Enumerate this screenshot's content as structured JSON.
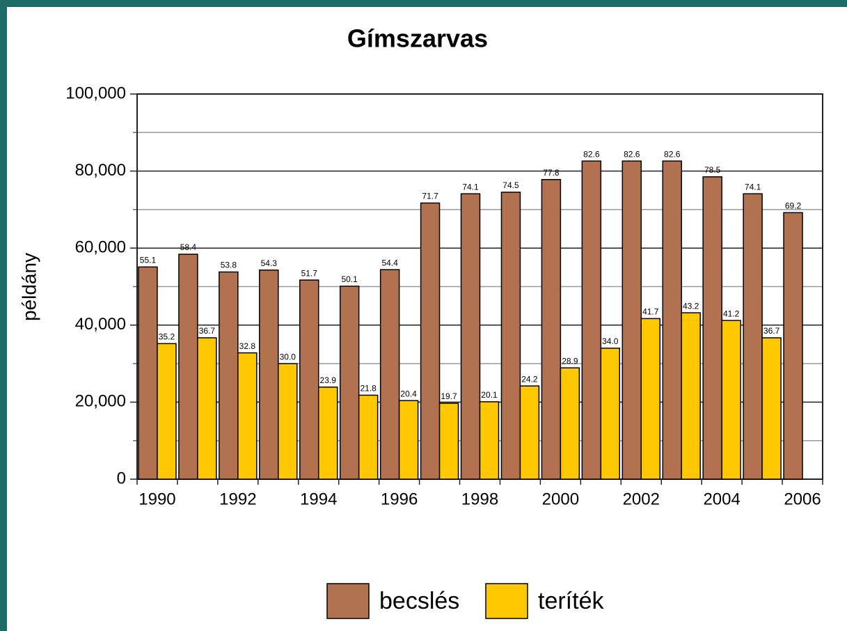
{
  "chart_data": {
    "type": "bar",
    "title": "Gímszarvas",
    "y_label": "példány",
    "categories": [
      "1990",
      null,
      "1992",
      null,
      "1994",
      null,
      "1996",
      null,
      "1998",
      null,
      "2000",
      null,
      "2002",
      null,
      "2004",
      null,
      "2006"
    ],
    "series": [
      {
        "name": "becslés",
        "color": "#b2714f",
        "values": [
          55100,
          58400,
          53800,
          54300,
          51700,
          50100,
          54400,
          71700,
          74100,
          74500,
          77800,
          82600,
          82600,
          82600,
          78500,
          74100,
          69200
        ],
        "value_labels": [
          "55.1",
          "58.4",
          "53.8",
          "54.3",
          "51.7",
          "50.1",
          "54.4",
          "71.7",
          "74.1",
          "74.5",
          "77.8",
          "82.6",
          "82.6",
          "82.6",
          "78.5",
          "74.1",
          "69.2"
        ]
      },
      {
        "name": "teríték",
        "color": "#ffc800",
        "values": [
          35200,
          36700,
          32800,
          30000,
          23900,
          21800,
          20400,
          19700,
          20100,
          24200,
          28900,
          34000,
          41700,
          43200,
          41200,
          36700,
          null
        ],
        "value_labels": [
          "35.2",
          "36.7",
          "32.8",
          "30.0",
          "23.9",
          "21.8",
          "20.4",
          "19.7",
          "20.1",
          "24.2",
          "28.9",
          "34.0",
          "41.7",
          "43.2",
          "41.2",
          "36.7",
          null
        ]
      }
    ],
    "ylim": [
      0,
      100000
    ],
    "yticks": [
      0,
      {
        "value": 20000,
        "label": "20,000"
      },
      {
        "value": 40000,
        "label": "40,000"
      },
      {
        "value": 60000,
        "label": "60,000"
      },
      {
        "value": 80000,
        "label": "80,000"
      },
      {
        "value": 100000,
        "label": "100,000"
      }
    ],
    "minor_yticks": [
      10000,
      30000,
      50000,
      70000,
      90000
    ],
    "grid": true,
    "legend": "bottom"
  }
}
